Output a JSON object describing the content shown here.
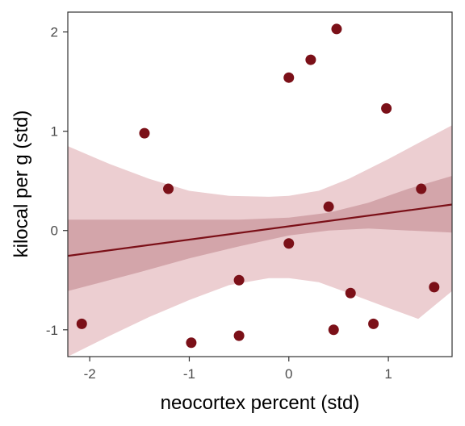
{
  "chart_data": {
    "type": "scatter",
    "title": "",
    "xlabel": "neocortex percent (std)",
    "ylabel": "kilocal per g (std)",
    "xlim": [
      -2.22,
      1.64
    ],
    "ylim": [
      -1.27,
      2.2
    ],
    "xticks": [
      -2,
      -1,
      0,
      1
    ],
    "yticks": [
      -1,
      0,
      1,
      2
    ],
    "xtick_labels": [
      "-2",
      "-1",
      "0",
      "1"
    ],
    "ytick_labels": [
      "-1",
      "0",
      "1",
      "2"
    ],
    "grid": false,
    "legend": "none",
    "points": [
      {
        "x": -2.08,
        "y": -0.94
      },
      {
        "x": -1.45,
        "y": 0.98
      },
      {
        "x": -1.21,
        "y": 0.42
      },
      {
        "x": -0.98,
        "y": -1.13
      },
      {
        "x": -0.5,
        "y": -0.5
      },
      {
        "x": -0.5,
        "y": -1.06
      },
      {
        "x": 0.0,
        "y": 1.54
      },
      {
        "x": 0.0,
        "y": -0.13
      },
      {
        "x": 0.22,
        "y": 1.72
      },
      {
        "x": 0.4,
        "y": 0.24
      },
      {
        "x": 0.45,
        "y": -1.0
      },
      {
        "x": 0.48,
        "y": 2.03
      },
      {
        "x": 0.62,
        "y": -0.63
      },
      {
        "x": 0.85,
        "y": -0.94
      },
      {
        "x": 0.98,
        "y": 1.23
      },
      {
        "x": 1.33,
        "y": 0.42
      },
      {
        "x": 1.46,
        "y": -0.57
      }
    ],
    "fit_line": {
      "x": [
        -2.22,
        1.64
      ],
      "y": [
        -0.255,
        0.262
      ]
    },
    "mean_interval": {
      "x": [
        -2.22,
        -1.5,
        -1.0,
        -0.5,
        0.0,
        0.4,
        0.8,
        1.2,
        1.64
      ],
      "lower": [
        -0.61,
        -0.42,
        -0.28,
        -0.16,
        -0.05,
        0.0,
        0.02,
        0.0,
        -0.02
      ],
      "upper": [
        0.11,
        0.11,
        0.11,
        0.11,
        0.13,
        0.18,
        0.28,
        0.42,
        0.55
      ]
    },
    "prediction_interval": {
      "x": [
        -2.22,
        -1.8,
        -1.4,
        -1.0,
        -0.6,
        -0.2,
        0.0,
        0.3,
        0.6,
        1.0,
        1.3,
        1.64
      ],
      "lower": [
        -1.27,
        -1.06,
        -0.87,
        -0.7,
        -0.55,
        -0.48,
        -0.48,
        -0.52,
        -0.63,
        -0.78,
        -0.89,
        -0.61
      ],
      "upper": [
        0.85,
        0.67,
        0.52,
        0.4,
        0.35,
        0.34,
        0.35,
        0.4,
        0.52,
        0.72,
        0.88,
        1.06
      ]
    },
    "colors": {
      "points": "#7b1018",
      "line": "#7b1018",
      "mean_interval": "#d3a5aa",
      "prediction_interval": "#ecced1",
      "panel_border": "#333333",
      "tick": "#4d4d4d"
    }
  }
}
